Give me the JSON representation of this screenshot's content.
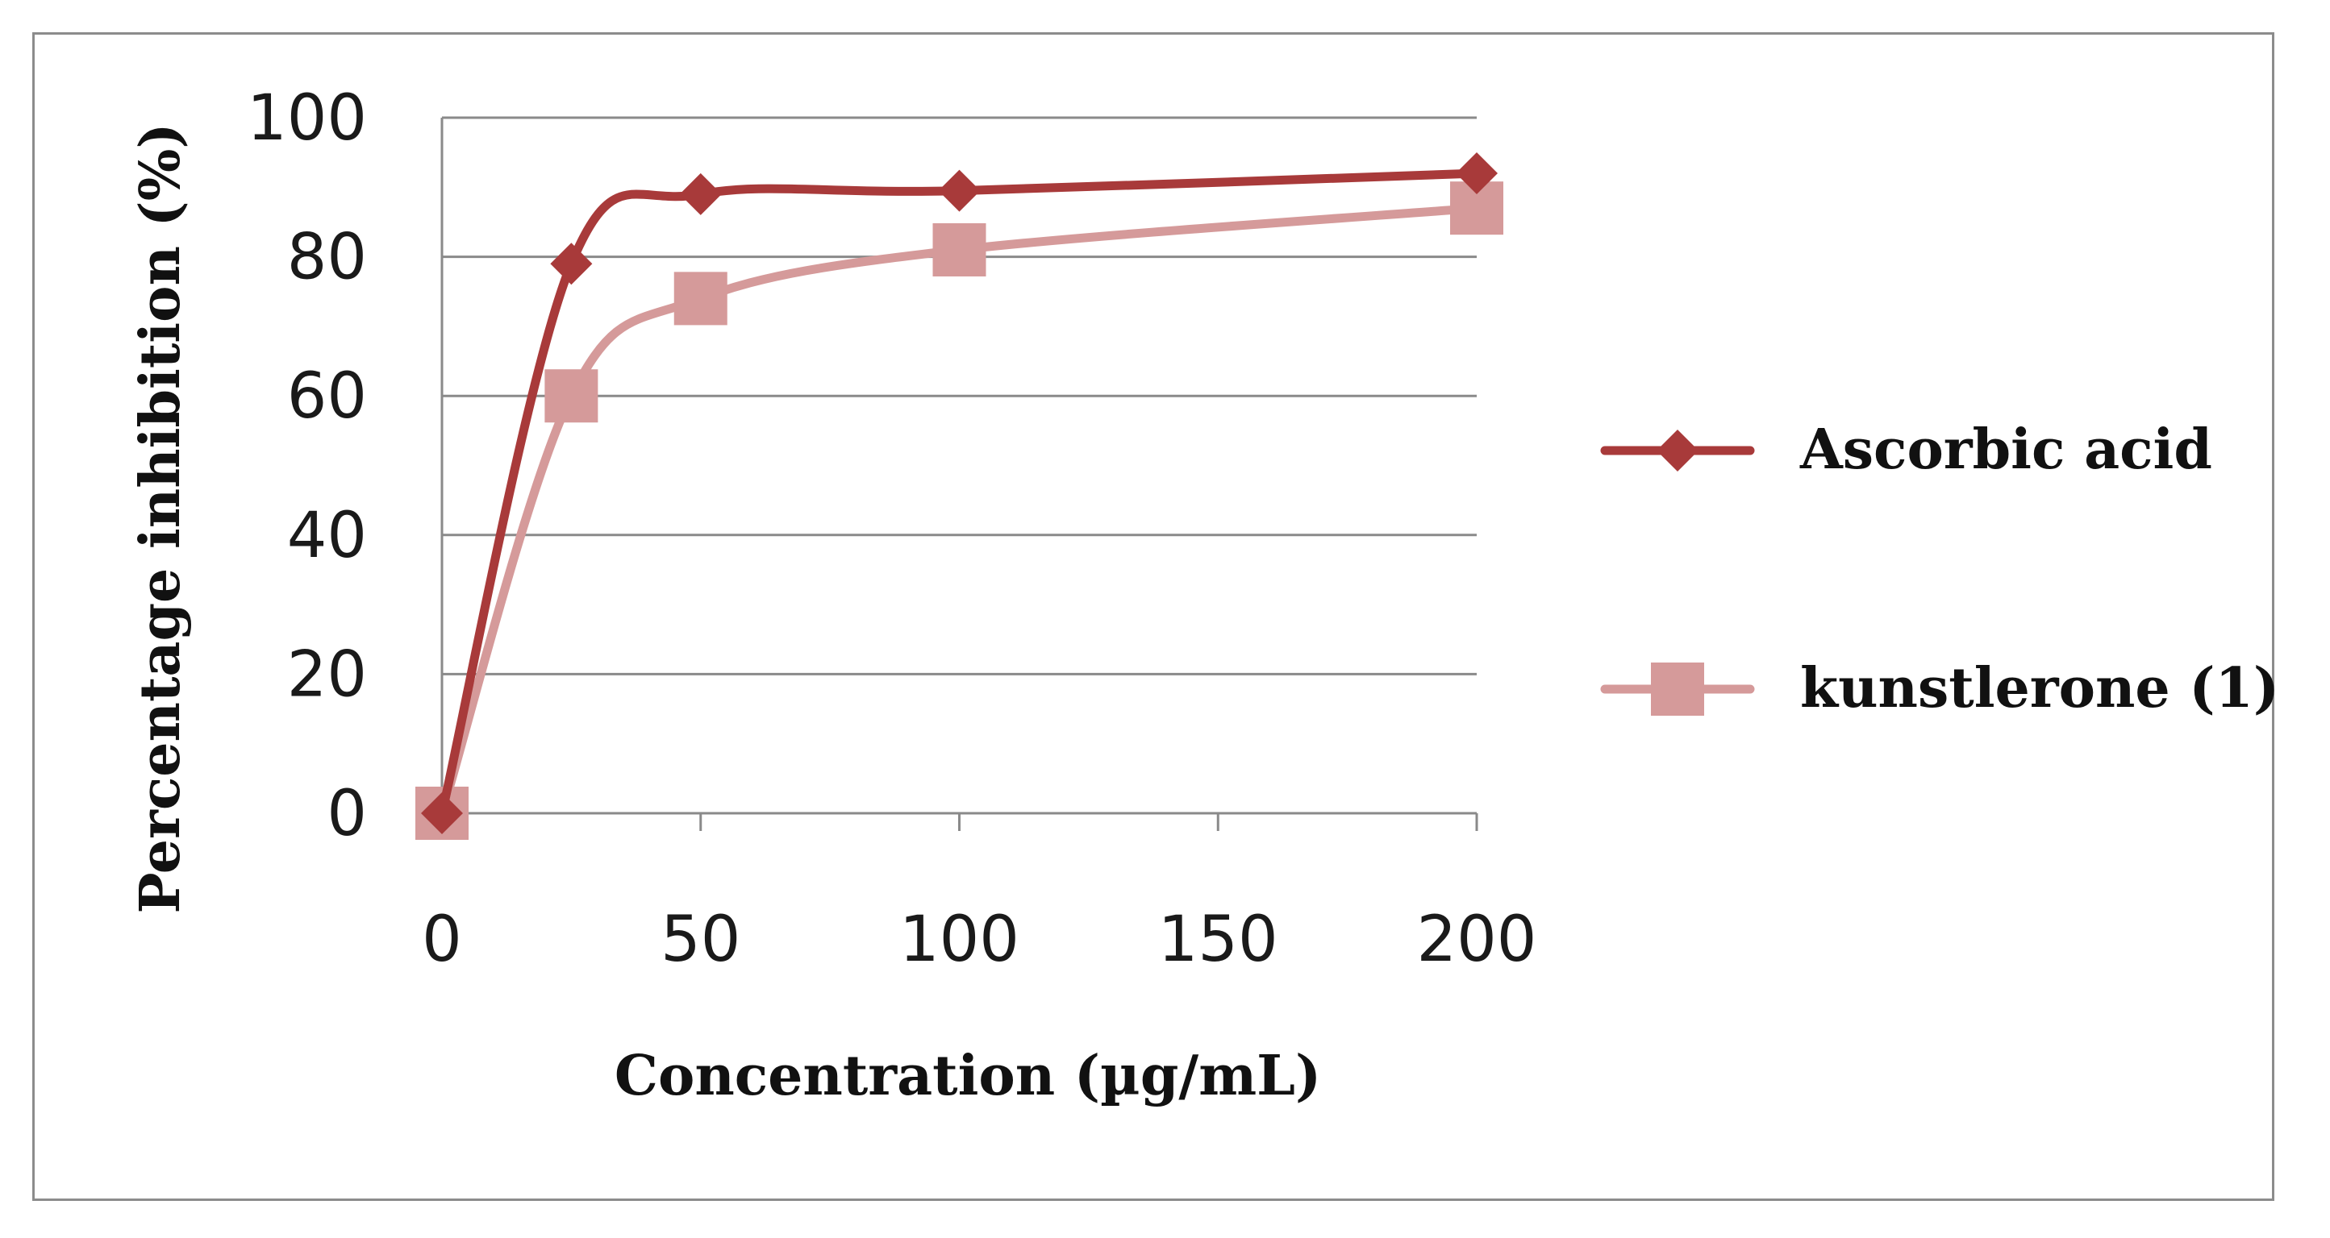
{
  "chart_data": {
    "type": "line",
    "xlabel": "Concentration (µg/mL)",
    "ylabel": "Percentage inhibition (%)",
    "xlim": [
      0,
      200
    ],
    "ylim": [
      0,
      100
    ],
    "x_ticks": [
      "0",
      "50",
      "100",
      "150",
      "200"
    ],
    "y_ticks": [
      "0",
      "20",
      "40",
      "60",
      "80",
      "100"
    ],
    "grid": "horizontal",
    "legend_position": "right",
    "series": [
      {
        "name": "Ascorbic acid",
        "color": "#a83a3a",
        "marker": "diamond",
        "x": [
          0,
          25,
          50,
          100,
          200
        ],
        "y": [
          0,
          79,
          89,
          89.5,
          92
        ]
      },
      {
        "name": "kunstlerone (1)",
        "color": "#d59a9a",
        "marker": "square",
        "x": [
          0,
          25,
          50,
          100,
          200
        ],
        "y": [
          0,
          60,
          74,
          81,
          87
        ]
      }
    ]
  }
}
